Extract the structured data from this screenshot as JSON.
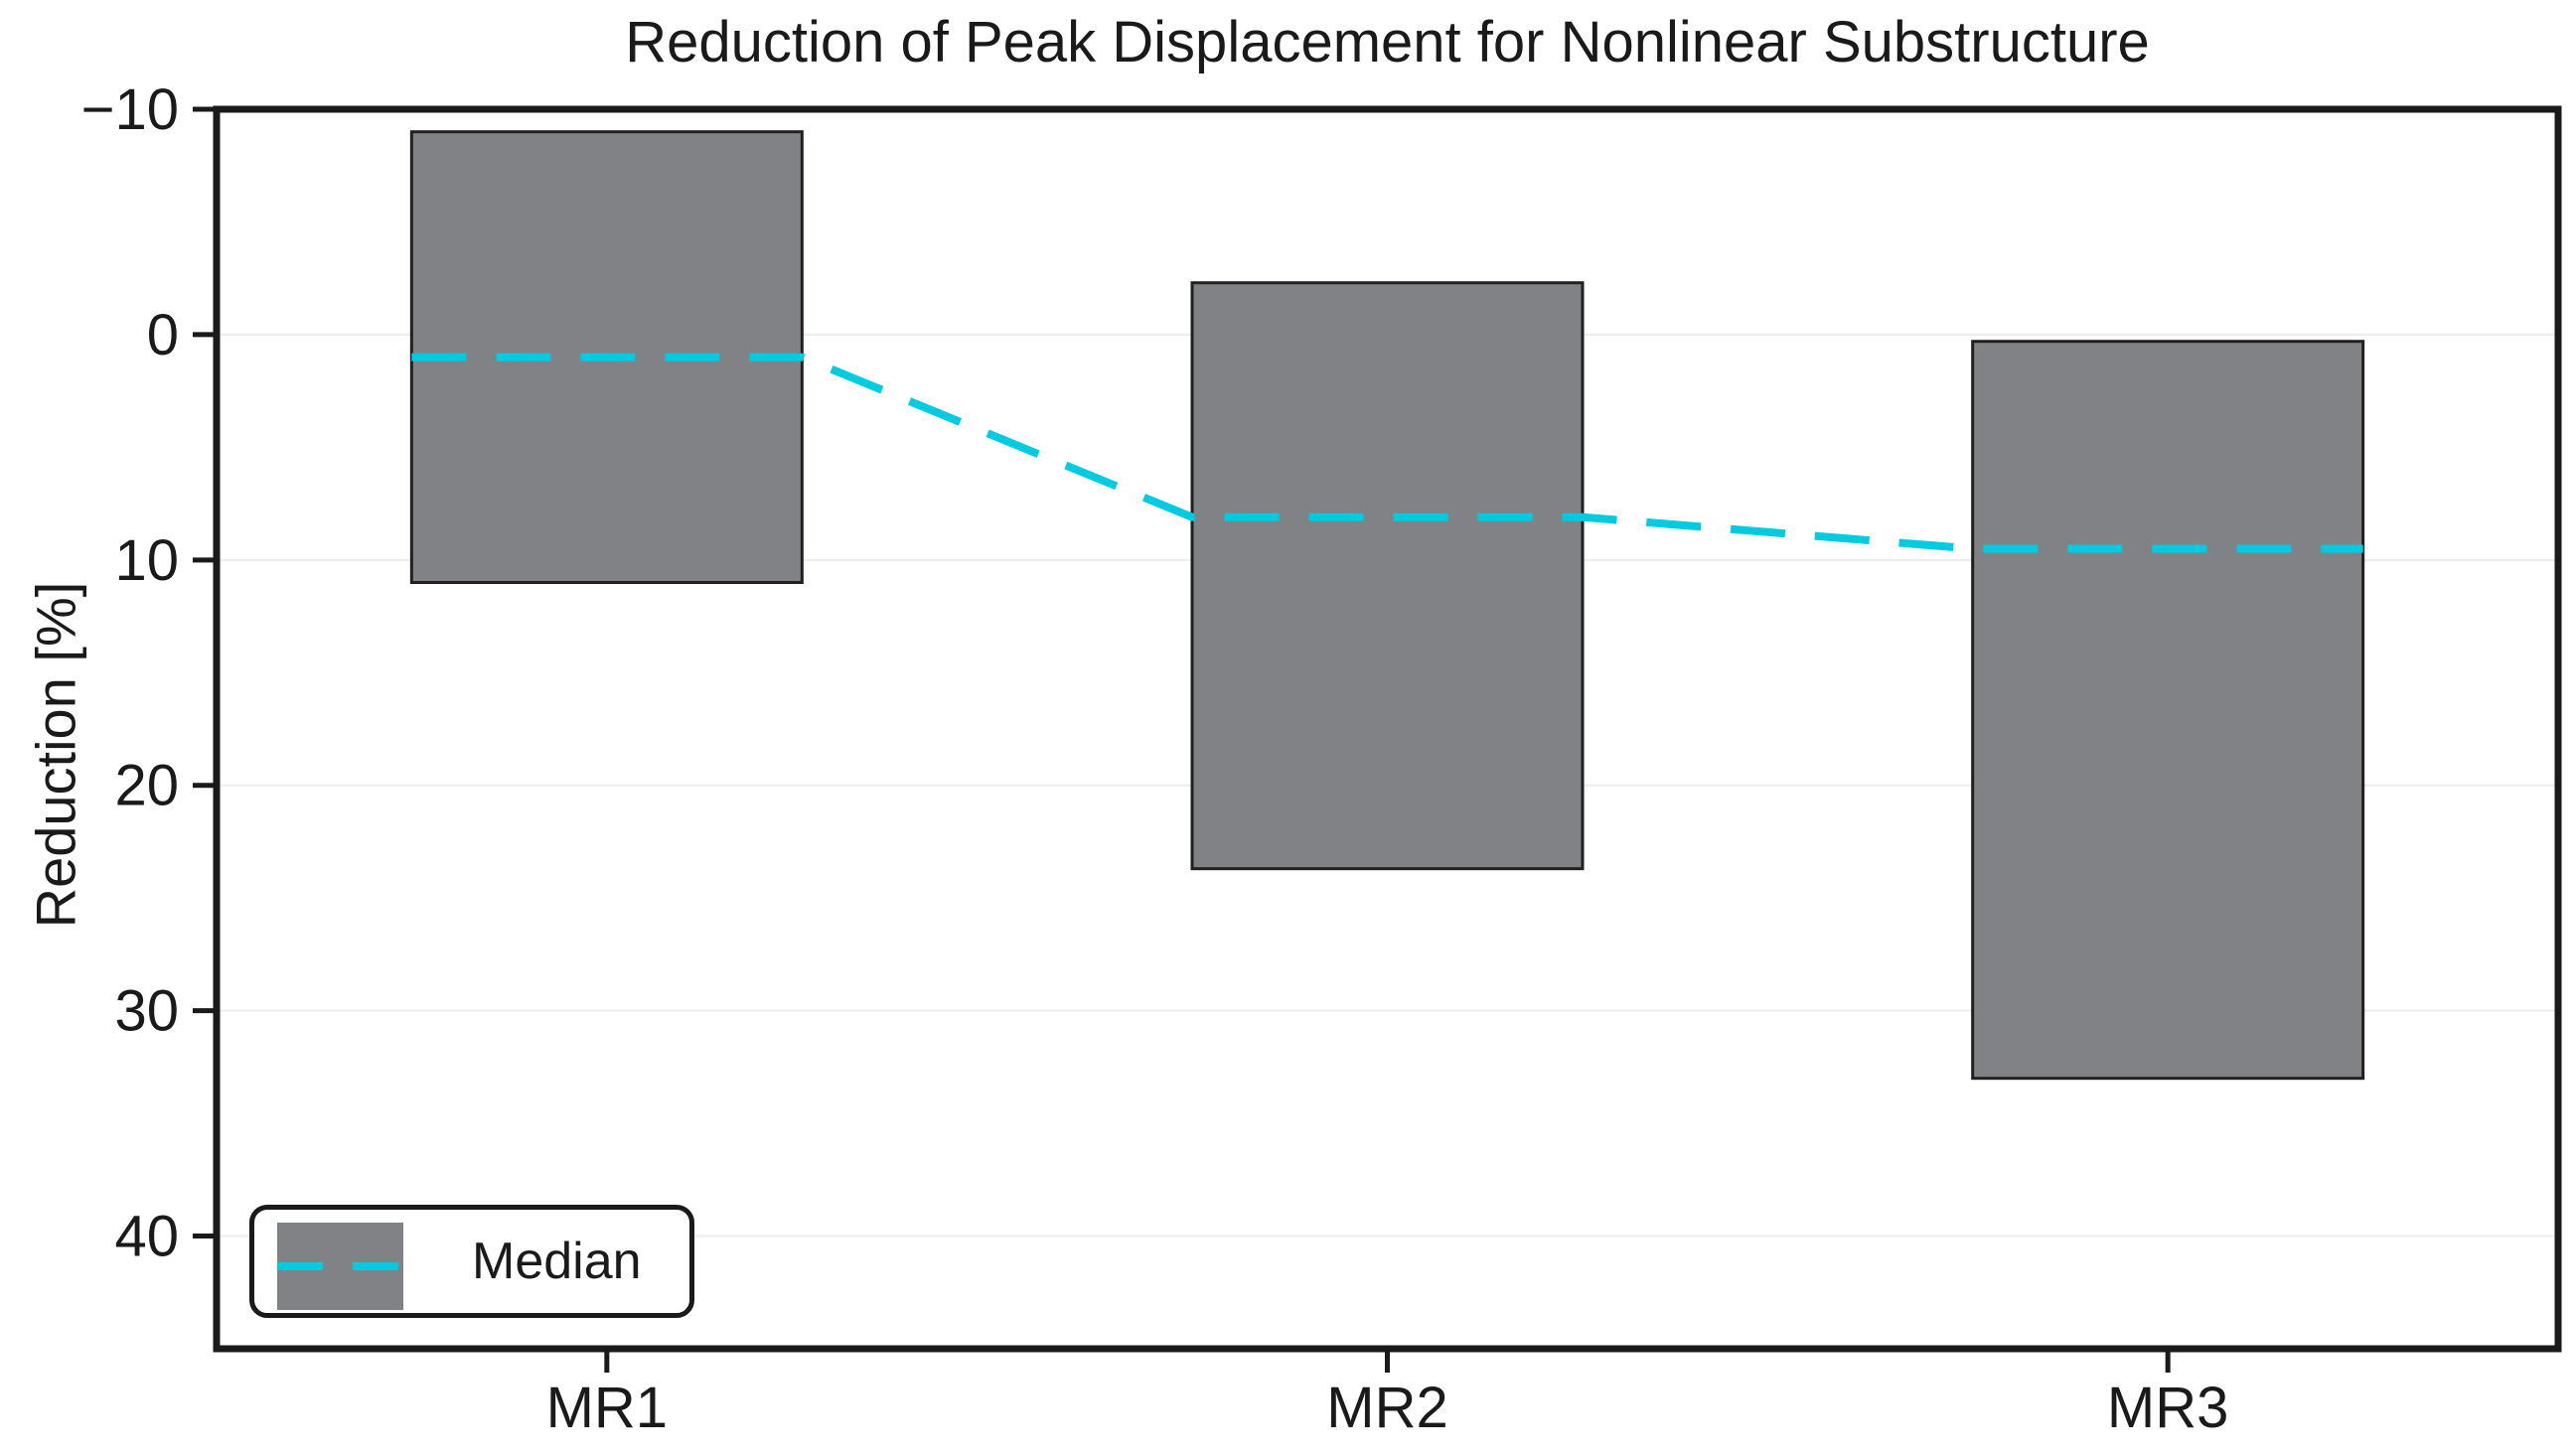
{
  "chart_data": {
    "type": "bar",
    "subtype": "floating-range-bars-with-median-line",
    "title": "Reduction of Peak Displacement for Nonlinear Substructure",
    "xlabel": "",
    "ylabel": "Reduction [%]",
    "categories": [
      "MR1",
      "MR2",
      "MR3"
    ],
    "bars": [
      {
        "category": "MR1",
        "range_low": -9.0,
        "range_high": 11.0,
        "median": 1.0
      },
      {
        "category": "MR2",
        "range_low": -2.3,
        "range_high": 23.7,
        "median": 8.1
      },
      {
        "category": "MR3",
        "range_low": 0.3,
        "range_high": 33.0,
        "median": 9.5
      }
    ],
    "yticks": [
      -10,
      0,
      10,
      20,
      30,
      40
    ],
    "ylim": [
      -10,
      45
    ],
    "y_axis_reversed": true,
    "grid": "horizontal",
    "legend": {
      "label": "Median",
      "position": "lower-left"
    },
    "colors": {
      "bar_fill": "#808285",
      "bar_edge": "#231f20",
      "median_line": "#00cbe0",
      "grid": "#ececec",
      "axis": "#1a1a1a",
      "background": "#ffffff"
    }
  }
}
